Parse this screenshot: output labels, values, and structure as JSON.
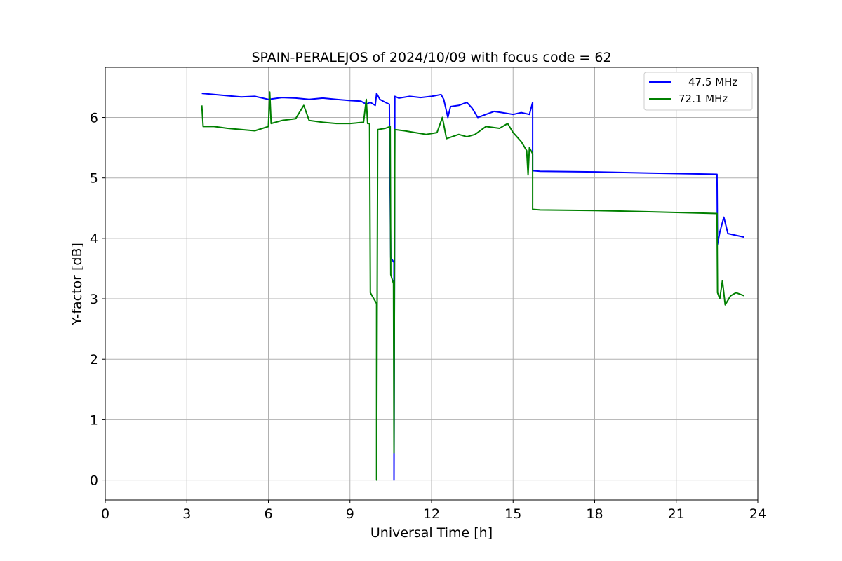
{
  "chart_data": {
    "type": "line",
    "title": "SPAIN-PERALEJOS of 2024/10/09 with focus code = 62",
    "xlabel": "Universal Time [h]",
    "ylabel": "Y-factor [dB]",
    "xlim": [
      0,
      24
    ],
    "ylim": [
      -0.33,
      6.83
    ],
    "xticks": [
      0,
      3,
      6,
      9,
      12,
      15,
      18,
      21,
      24
    ],
    "yticks": [
      0,
      1,
      2,
      3,
      4,
      5,
      6
    ],
    "grid": true,
    "legend_position": "top-right",
    "series": [
      {
        "name": "47.5 MHz",
        "color": "#0000ff",
        "points": [
          [
            3.55,
            6.4
          ],
          [
            4.0,
            6.38
          ],
          [
            4.5,
            6.36
          ],
          [
            5.0,
            6.34
          ],
          [
            5.5,
            6.35
          ],
          [
            6.0,
            6.3
          ],
          [
            6.5,
            6.33
          ],
          [
            7.0,
            6.32
          ],
          [
            7.5,
            6.3
          ],
          [
            8.0,
            6.32
          ],
          [
            8.5,
            6.3
          ],
          [
            9.0,
            6.28
          ],
          [
            9.4,
            6.27
          ],
          [
            9.6,
            6.22
          ],
          [
            9.75,
            6.25
          ],
          [
            9.93,
            6.2
          ],
          [
            9.98,
            6.4
          ],
          [
            10.1,
            6.3
          ],
          [
            10.3,
            6.25
          ],
          [
            10.45,
            6.22
          ],
          [
            10.5,
            3.68
          ],
          [
            10.62,
            3.6
          ],
          [
            10.62,
            0.0
          ],
          [
            10.65,
            6.35
          ],
          [
            10.8,
            6.32
          ],
          [
            11.2,
            6.35
          ],
          [
            11.6,
            6.33
          ],
          [
            12.0,
            6.35
          ],
          [
            12.35,
            6.38
          ],
          [
            12.45,
            6.3
          ],
          [
            12.6,
            6.0
          ],
          [
            12.7,
            6.18
          ],
          [
            13.0,
            6.2
          ],
          [
            13.3,
            6.25
          ],
          [
            13.5,
            6.15
          ],
          [
            13.7,
            6.0
          ],
          [
            14.0,
            6.05
          ],
          [
            14.3,
            6.1
          ],
          [
            14.6,
            6.08
          ],
          [
            15.0,
            6.05
          ],
          [
            15.3,
            6.08
          ],
          [
            15.6,
            6.05
          ],
          [
            15.72,
            6.25
          ],
          [
            15.72,
            5.12
          ],
          [
            16.0,
            5.11
          ],
          [
            18.0,
            5.1
          ],
          [
            20.0,
            5.08
          ],
          [
            22.5,
            5.06
          ],
          [
            22.52,
            3.9
          ],
          [
            22.6,
            4.1
          ],
          [
            22.75,
            4.35
          ],
          [
            22.9,
            4.08
          ],
          [
            23.2,
            4.05
          ],
          [
            23.5,
            4.02
          ]
        ]
      },
      {
        "name": "72.1 MHz",
        "color": "#008000",
        "points": [
          [
            3.55,
            6.2
          ],
          [
            3.6,
            5.85
          ],
          [
            4.0,
            5.85
          ],
          [
            4.5,
            5.82
          ],
          [
            5.0,
            5.8
          ],
          [
            5.5,
            5.78
          ],
          [
            6.0,
            5.85
          ],
          [
            6.05,
            6.42
          ],
          [
            6.1,
            5.9
          ],
          [
            6.5,
            5.95
          ],
          [
            7.0,
            5.98
          ],
          [
            7.3,
            6.2
          ],
          [
            7.5,
            5.95
          ],
          [
            8.0,
            5.92
          ],
          [
            8.5,
            5.9
          ],
          [
            9.0,
            5.9
          ],
          [
            9.5,
            5.92
          ],
          [
            9.6,
            6.3
          ],
          [
            9.65,
            5.9
          ],
          [
            9.72,
            5.9
          ],
          [
            9.75,
            3.1
          ],
          [
            9.98,
            2.92
          ],
          [
            9.98,
            0.0
          ],
          [
            10.02,
            5.8
          ],
          [
            10.3,
            5.82
          ],
          [
            10.48,
            5.85
          ],
          [
            10.5,
            3.4
          ],
          [
            10.6,
            3.25
          ],
          [
            10.62,
            0.45
          ],
          [
            10.65,
            5.8
          ],
          [
            11.0,
            5.78
          ],
          [
            11.4,
            5.75
          ],
          [
            11.8,
            5.72
          ],
          [
            12.2,
            5.75
          ],
          [
            12.4,
            6.0
          ],
          [
            12.55,
            5.65
          ],
          [
            13.0,
            5.72
          ],
          [
            13.3,
            5.68
          ],
          [
            13.6,
            5.72
          ],
          [
            14.0,
            5.85
          ],
          [
            14.5,
            5.82
          ],
          [
            14.8,
            5.9
          ],
          [
            15.0,
            5.75
          ],
          [
            15.3,
            5.6
          ],
          [
            15.5,
            5.45
          ],
          [
            15.55,
            5.05
          ],
          [
            15.6,
            5.5
          ],
          [
            15.72,
            5.4
          ],
          [
            15.72,
            4.48
          ],
          [
            16.0,
            4.47
          ],
          [
            18.0,
            4.46
          ],
          [
            20.0,
            4.44
          ],
          [
            22.5,
            4.41
          ],
          [
            22.52,
            3.1
          ],
          [
            22.6,
            3.0
          ],
          [
            22.7,
            3.3
          ],
          [
            22.8,
            2.9
          ],
          [
            23.0,
            3.05
          ],
          [
            23.2,
            3.1
          ],
          [
            23.5,
            3.05
          ]
        ]
      }
    ]
  }
}
